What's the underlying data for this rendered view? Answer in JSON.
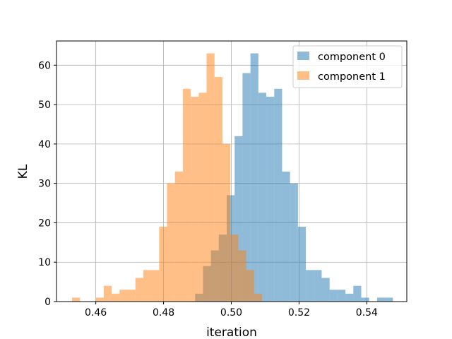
{
  "chart_data": {
    "type": "histogram",
    "xlabel": "iteration",
    "ylabel": "KL",
    "xlim": [
      0.4484,
      0.5518
    ],
    "ylim": [
      0,
      66.15
    ],
    "xticks": [
      0.46,
      0.48,
      0.5,
      0.52,
      0.54
    ],
    "xtick_labels": [
      "0.46",
      "0.48",
      "0.50",
      "0.52",
      "0.54"
    ],
    "yticks": [
      0,
      10,
      20,
      30,
      40,
      50,
      60
    ],
    "ytick_labels": [
      "0",
      "10",
      "20",
      "30",
      "40",
      "50",
      "60"
    ],
    "grid": true,
    "legend_position": "top-right",
    "series": [
      {
        "name": "component 0",
        "color": "#1f77b4",
        "alpha": 0.5,
        "bin_start": 0.4893,
        "bin_width": 0.002336,
        "counts": [
          2,
          9,
          13,
          17,
          27,
          42,
          58,
          63,
          53,
          52,
          54,
          33,
          30,
          19,
          8,
          8,
          6,
          3,
          3,
          2,
          4,
          1,
          0,
          1,
          1
        ]
      },
      {
        "name": "component 1",
        "color": "#ff7f0e",
        "alpha": 0.5,
        "bin_start": 0.453,
        "bin_width": 0.002336,
        "counts": [
          1,
          0,
          0,
          1,
          4,
          2,
          3,
          3,
          6,
          8,
          8,
          19,
          30,
          33,
          54,
          52,
          53,
          63,
          57,
          40,
          17,
          13,
          8,
          2
        ]
      }
    ]
  }
}
